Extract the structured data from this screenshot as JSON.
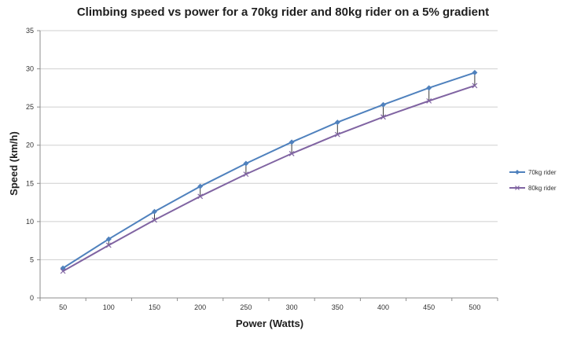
{
  "chart_data": {
    "type": "line",
    "title": "Climbing speed vs power for a 70kg rider and 80kg rider on a 5% gradient",
    "xlabel": "Power (Watts)",
    "ylabel": "Speed (km/h)",
    "categories": [
      "50",
      "100",
      "150",
      "200",
      "250",
      "300",
      "350",
      "400",
      "450",
      "500"
    ],
    "ylim": [
      0,
      35
    ],
    "yticks": [
      "0",
      "5",
      "10",
      "15",
      "20",
      "25",
      "30",
      "35"
    ],
    "grid": true,
    "legend_position": "right",
    "series": [
      {
        "name": "70kg rider",
        "color": "#4f81bd",
        "marker": "diamond",
        "values": [
          3.9,
          7.7,
          11.3,
          14.6,
          17.6,
          20.4,
          23.0,
          25.3,
          27.5,
          29.5
        ]
      },
      {
        "name": "80kg rider",
        "color": "#8064a2",
        "marker": "x",
        "values": [
          3.5,
          6.9,
          10.2,
          13.3,
          16.2,
          18.9,
          21.4,
          23.7,
          25.8,
          27.8
        ]
      }
    ]
  }
}
